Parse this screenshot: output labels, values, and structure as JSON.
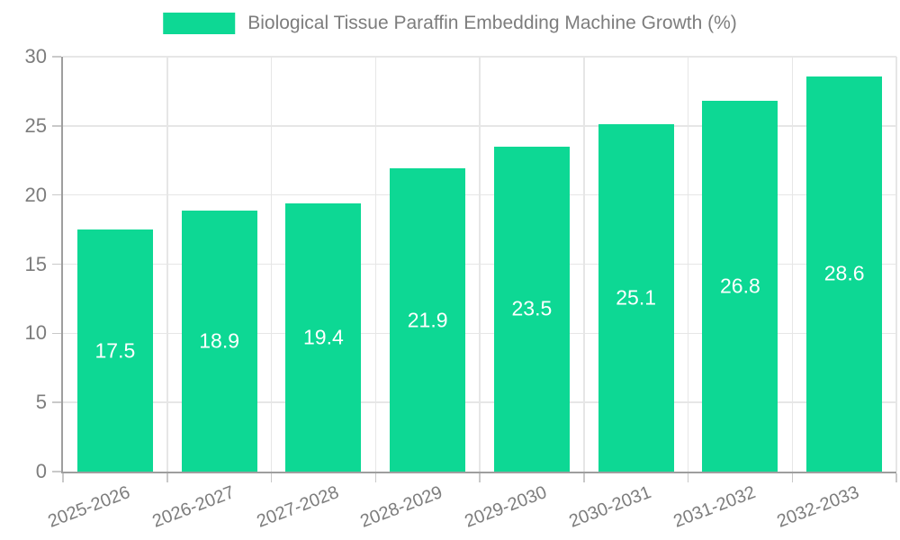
{
  "chart_data": {
    "type": "bar",
    "title": "Biological Tissue Paraffin Embedding Machine Growth (%)",
    "categories": [
      "2025-2026",
      "2026-2027",
      "2027-2028",
      "2028-2029",
      "2029-2030",
      "2030-2031",
      "2031-2032",
      "2032-2033"
    ],
    "values": [
      17.5,
      18.9,
      19.4,
      21.9,
      23.5,
      25.1,
      26.8,
      28.6
    ],
    "value_labels": [
      "17.5",
      "18.9",
      "19.4",
      "21.9",
      "23.5",
      "25.1",
      "26.8",
      "28.6"
    ],
    "xlabel": "",
    "ylabel": "",
    "ylim": [
      0,
      30
    ],
    "yticks": [
      0,
      5,
      10,
      15,
      20,
      25,
      30
    ],
    "ytick_labels": [
      "0",
      "5",
      "10",
      "15",
      "20",
      "25",
      "30"
    ],
    "grid": true,
    "legend_position": "top-center",
    "colors": {
      "bar": "#0dd894",
      "grid": "#e6e6e6",
      "axis": "#9e9e9e",
      "tick": "#c9c9c9",
      "text": "#7d7d7d",
      "value_label_text": "#ffffff",
      "background": "#ffffff"
    }
  }
}
